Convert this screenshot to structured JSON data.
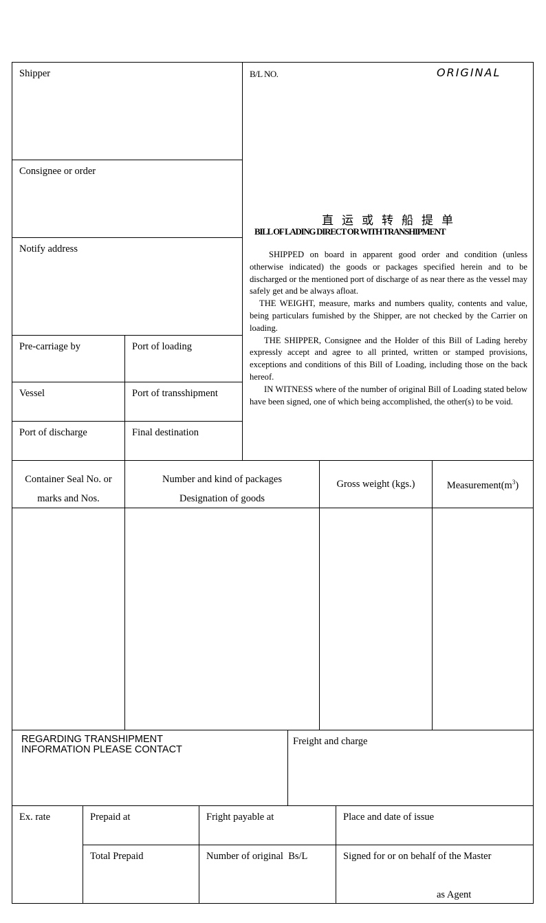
{
  "shipper": "Shipper",
  "consignee": "Consignee or order",
  "notify": "Notify address",
  "pre_carriage": "Pre-carriage by",
  "port_loading": "Port of loading",
  "vessel": "Vessel",
  "port_transshipment": "Port of transshipment",
  "port_discharge": "Port of discharge",
  "final_destination": "Final destination",
  "bl_no": "B/L NO.",
  "original": "ORIGINAL",
  "title_cn": "直运或转船提单",
  "title_en": "BILL OF LADING DIRECT OR WITH TRANSHIPMENT",
  "terms": [
    "SHIPPED on board in apparent good order and condition (unless otherwise indicated) the goods or packages specified herein and to be discharged or the mentioned port of discharge of as near there as the vessel may safely get and be always afloat.",
    "THE WEIGHT, measure, marks and numbers quality, contents and value, being particulars fumished by the Shipper, are not checked by the Carrier on loading.",
    "THE SHIPPER, Consignee and the Holder of this Bill of Lading hereby expressly accept and agree to all printed, written or stamped provisions, exceptions and conditions of this Bill of Loading, including those on the back hereof.",
    "IN WITNESS where of the number of original Bill of Loading stated below have been signed, one of which being accomplished, the other(s) to be void."
  ],
  "goods_header": {
    "container_1": "Container Seal No. or",
    "container_2": "marks and Nos.",
    "packages_1": "Number and kind of packages",
    "packages_2": "Designation of goods",
    "gross_weight": "Gross weight (kgs.)",
    "measurement": "Measurement(m",
    "measurement_sup": "3",
    "measurement_end": ")"
  },
  "regarding_1": "REGARDING TRANSHIPMENT",
  "regarding_2": "INFORMATION PLEASE CONTACT",
  "freight": "Freight and charge",
  "ex_rate": "Ex. rate",
  "prepaid_at": "Prepaid at",
  "fright_payable": "Fright payable at",
  "place_date": "Place and date of issue",
  "total_prepaid": "Total Prepaid",
  "num_original": "Number of original  Bs/L",
  "signed": "Signed for or on behalf of the Master",
  "as_agent": "as Agent"
}
